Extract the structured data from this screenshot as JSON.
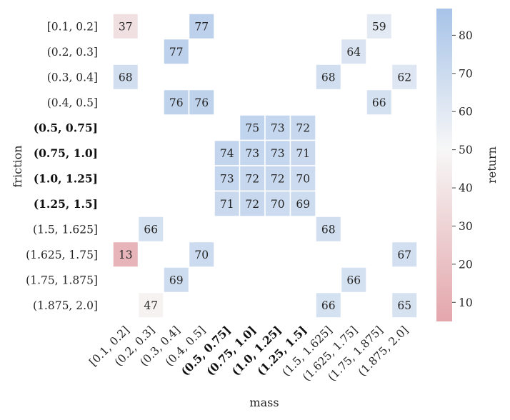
{
  "chart_data": {
    "type": "heatmap",
    "xlabel": "mass",
    "ylabel": "friction",
    "colorbar_label": "return",
    "x_categories": [
      "[0.1, 0.2]",
      "(0.2, 0.3]",
      "(0.3, 0.4]",
      "(0.4, 0.5]",
      "(0.5, 0.75]",
      "(0.75, 1.0]",
      "(1.0, 1.25]",
      "(1.25, 1.5]",
      "(1.5, 1.625]",
      "(1.625, 1.75]",
      "(1.75, 1.875]",
      "(1.875, 2.0]"
    ],
    "y_categories": [
      "[0.1, 0.2]",
      "(0.2, 0.3]",
      "(0.3, 0.4]",
      "(0.4, 0.5]",
      "(0.5, 0.75]",
      "(0.75, 1.0]",
      "(1.0, 1.25]",
      "(1.25, 1.5]",
      "(1.5, 1.625]",
      "(1.625, 1.75]",
      "(1.75, 1.875]",
      "(1.875, 2.0]"
    ],
    "bold_x": [
      "(0.5, 0.75]",
      "(0.75, 1.0]",
      "(1.0, 1.25]",
      "(1.25, 1.5]"
    ],
    "bold_y": [
      "(0.5, 0.75]",
      "(0.75, 1.0]",
      "(1.0, 1.25]",
      "(1.25, 1.5]"
    ],
    "values": [
      [
        37,
        null,
        null,
        77,
        null,
        null,
        null,
        null,
        null,
        null,
        59,
        null
      ],
      [
        null,
        null,
        77,
        null,
        null,
        null,
        null,
        null,
        null,
        64,
        null,
        null
      ],
      [
        68,
        null,
        null,
        null,
        null,
        null,
        null,
        null,
        68,
        null,
        null,
        62
      ],
      [
        null,
        null,
        76,
        76,
        null,
        null,
        null,
        null,
        null,
        null,
        66,
        null
      ],
      [
        null,
        null,
        null,
        null,
        null,
        75,
        73,
        72,
        null,
        null,
        null,
        null
      ],
      [
        null,
        null,
        null,
        null,
        74,
        73,
        73,
        71,
        null,
        null,
        null,
        null
      ],
      [
        null,
        null,
        null,
        null,
        73,
        72,
        72,
        70,
        null,
        null,
        null,
        null
      ],
      [
        null,
        null,
        null,
        null,
        71,
        72,
        70,
        69,
        null,
        null,
        null,
        null
      ],
      [
        null,
        66,
        null,
        null,
        null,
        null,
        null,
        null,
        68,
        null,
        null,
        null
      ],
      [
        13,
        null,
        null,
        70,
        null,
        null,
        null,
        null,
        null,
        null,
        null,
        67
      ],
      [
        null,
        null,
        69,
        null,
        null,
        null,
        null,
        null,
        null,
        66,
        null,
        null
      ],
      [
        null,
        47,
        null,
        null,
        null,
        null,
        null,
        null,
        66,
        null,
        null,
        65
      ]
    ],
    "color_range": [
      5,
      87
    ],
    "colorbar_ticks": [
      10,
      20,
      30,
      40,
      50,
      60,
      70,
      80
    ],
    "colors": {
      "low": "#e3a6ab",
      "mid": "#f7f7f7",
      "high": "#a7c3e8"
    }
  }
}
